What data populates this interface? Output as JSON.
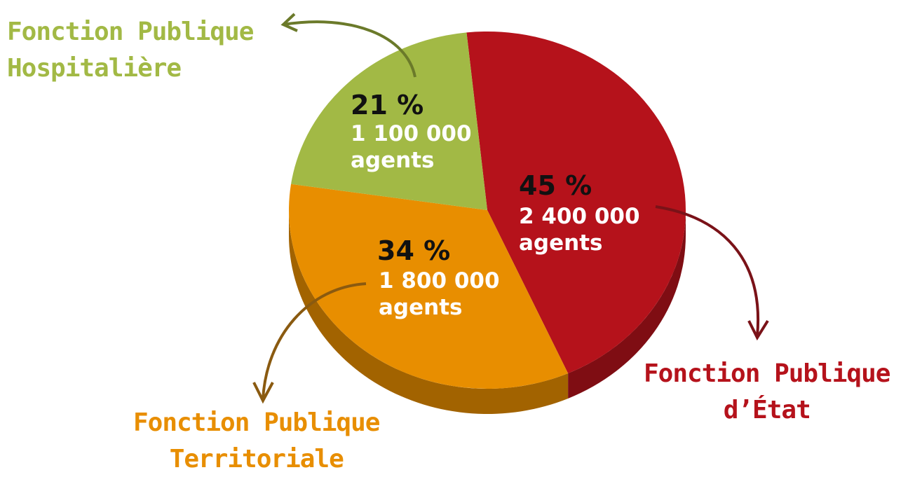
{
  "chart_data": {
    "type": "pie",
    "categories": [
      "Fonction Publique\nd’État",
      "Fonction Publique\nTerritoriale",
      "Fonction Publique\nHospitalière"
    ],
    "values": [
      45,
      34,
      21
    ],
    "value_labels": [
      "45 %",
      "34 %",
      "21 %"
    ],
    "counts": [
      2400000,
      1800000,
      1100000
    ],
    "count_labels": [
      "2 400 000\nagents",
      "1 800 000\nagents",
      "1 100 000\nagents"
    ],
    "colors": [
      "#b5121b",
      "#e88e00",
      "#a2b945"
    ]
  }
}
